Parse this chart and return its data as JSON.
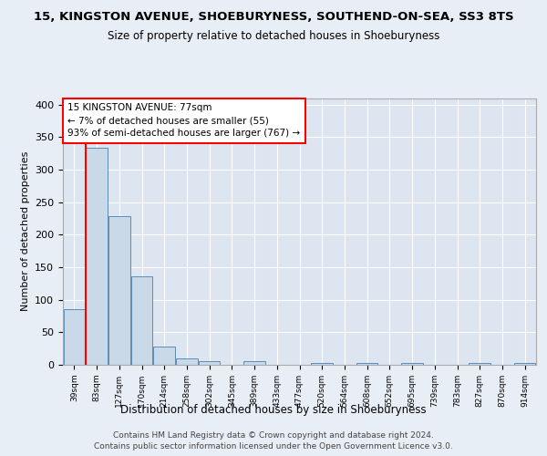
{
  "title1": "15, KINGSTON AVENUE, SHOEBURYNESS, SOUTHEND-ON-SEA, SS3 8TS",
  "title2": "Size of property relative to detached houses in Shoeburyness",
  "xlabel": "Distribution of detached houses by size in Shoeburyness",
  "ylabel": "Number of detached properties",
  "footer1": "Contains HM Land Registry data © Crown copyright and database right 2024.",
  "footer2": "Contains public sector information licensed under the Open Government Licence v3.0.",
  "categories": [
    "39sqm",
    "83sqm",
    "127sqm",
    "170sqm",
    "214sqm",
    "258sqm",
    "302sqm",
    "345sqm",
    "389sqm",
    "433sqm",
    "477sqm",
    "520sqm",
    "564sqm",
    "608sqm",
    "652sqm",
    "695sqm",
    "739sqm",
    "783sqm",
    "827sqm",
    "870sqm",
    "914sqm"
  ],
  "values": [
    86,
    334,
    228,
    136,
    28,
    10,
    5,
    0,
    5,
    0,
    0,
    3,
    0,
    3,
    0,
    3,
    0,
    0,
    3,
    0,
    3
  ],
  "bar_color": "#c9d9e8",
  "bar_edge_color": "#5b8db8",
  "annotation_line1": "15 KINGSTON AVENUE: 77sqm",
  "annotation_line2": "← 7% of detached houses are smaller (55)",
  "annotation_line3": "93% of semi-detached houses are larger (767) →",
  "annotation_box_color": "white",
  "annotation_box_edge_color": "red",
  "ylim": [
    0,
    410
  ],
  "yticks": [
    0,
    50,
    100,
    150,
    200,
    250,
    300,
    350,
    400
  ],
  "background_color": "#e8eef5",
  "axes_facecolor": "#dde6f0",
  "grid_color": "white",
  "vline_color": "red",
  "vline_x": 0.5
}
